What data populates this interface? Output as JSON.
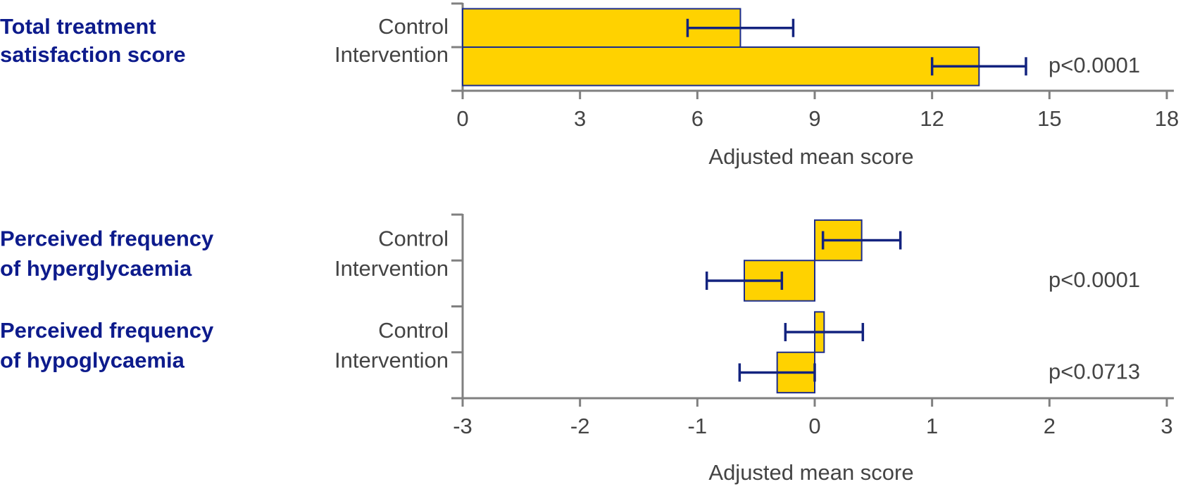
{
  "chart_data": [
    {
      "type": "bar",
      "orientation": "horizontal",
      "xlabel": "Adjusted mean score",
      "xlim": [
        0,
        18
      ],
      "xticks": [
        0,
        3,
        6,
        9,
        12,
        15,
        18
      ],
      "bar_color": "#ffd200",
      "edge_color": "#1b2c8c",
      "error_color": "#13237f",
      "groups": [
        {
          "title": [
            "Total treatment",
            "satisfaction score"
          ],
          "categories": [
            "Control",
            "Intervention"
          ],
          "values": [
            7.1,
            13.2
          ],
          "errors": [
            1.35,
            1.2
          ],
          "p_value": "p<0.0001"
        }
      ]
    },
    {
      "type": "bar",
      "orientation": "horizontal",
      "xlabel": "Adjusted mean score",
      "xlim": [
        -3,
        3
      ],
      "xticks": [
        -3,
        -2,
        -1,
        0,
        1,
        2,
        3
      ],
      "bar_color": "#ffd200",
      "edge_color": "#1b2c8c",
      "error_color": "#13237f",
      "groups": [
        {
          "title": [
            "Perceived frequency",
            "of hyperglycaemia"
          ],
          "categories": [
            "Control",
            "Intervention"
          ],
          "values": [
            0.4,
            -0.6
          ],
          "errors": [
            0.33,
            0.32
          ],
          "p_value": "p<0.0001"
        },
        {
          "title": [
            "Perceived frequency",
            "of hypoglycaemia"
          ],
          "categories": [
            "Control",
            "Intervention"
          ],
          "values": [
            0.08,
            -0.32
          ],
          "errors": [
            0.33,
            0.32
          ],
          "p_value": "p<0.0713"
        }
      ]
    }
  ]
}
